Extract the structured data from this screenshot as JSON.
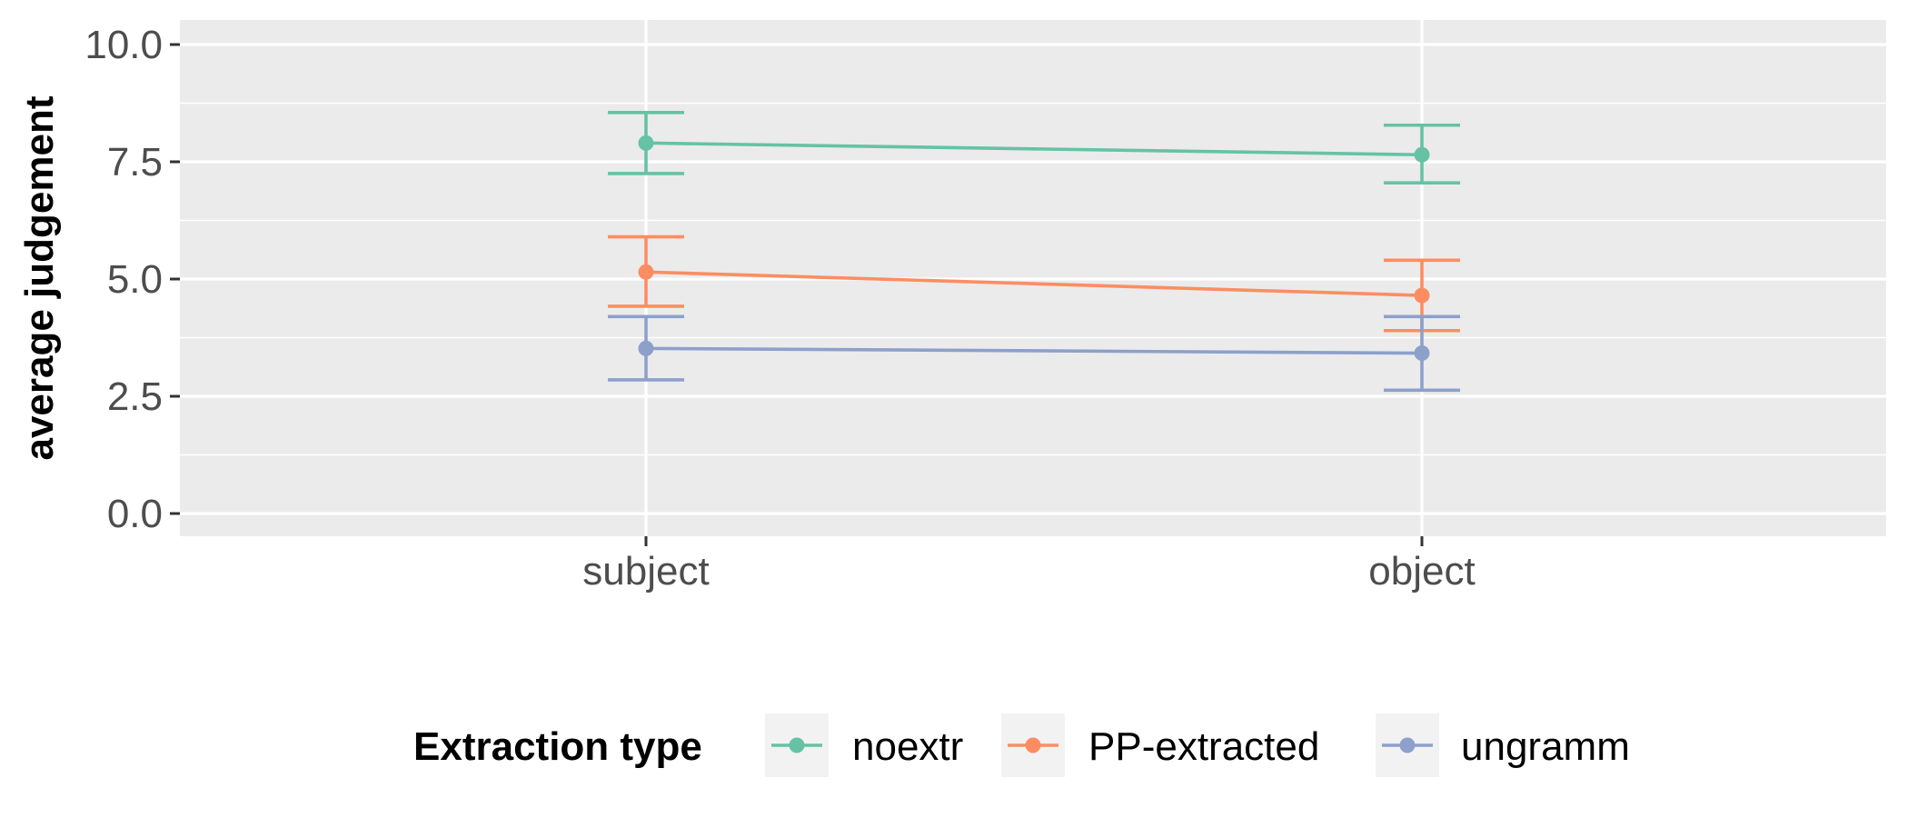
{
  "chart_data": {
    "type": "line",
    "categories": [
      "subject",
      "object"
    ],
    "xlabel": "",
    "ylabel": "average judgement",
    "ylim": [
      -0.4,
      10.5
    ],
    "yticks": [
      "0.0",
      "2.5",
      "5.0",
      "7.5",
      "10.0"
    ],
    "ytick_values": [
      0,
      2.5,
      5,
      7.5,
      10
    ],
    "grid": true,
    "legend": {
      "title": "Extraction type",
      "placement": "bottom"
    },
    "series": [
      {
        "name": "noextr",
        "color": "#66c2a5",
        "values": [
          7.9,
          7.65
        ],
        "lower": [
          7.25,
          7.05
        ],
        "upper": [
          8.55,
          8.28
        ]
      },
      {
        "name": "PP-extracted",
        "color": "#fc8d62",
        "values": [
          5.15,
          4.65
        ],
        "lower": [
          4.42,
          3.9
        ],
        "upper": [
          5.9,
          5.4
        ]
      },
      {
        "name": "ungramm",
        "color": "#8da0cb",
        "values": [
          3.52,
          3.42
        ],
        "lower": [
          2.85,
          2.63
        ],
        "upper": [
          4.2,
          4.2
        ]
      }
    ]
  }
}
